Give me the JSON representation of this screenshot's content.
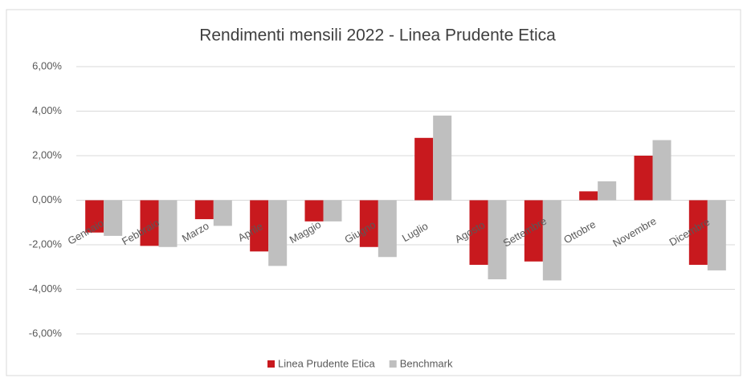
{
  "chart_data": {
    "type": "bar",
    "title": "Rendimenti mensili 2022 - Linea Prudente Etica",
    "categories": [
      "Gennaio",
      "Febbraio",
      "Marzo",
      "Aprile",
      "Maggio",
      "Giugno",
      "Luglio",
      "Agosto",
      "Settembre",
      "Ottobre",
      "Novembre",
      "Dicembre"
    ],
    "series": [
      {
        "name": "Linea Prudente Etica",
        "color": "#c8191e",
        "values": [
          -1.45,
          -2.05,
          -0.85,
          -2.3,
          -0.95,
          -2.1,
          2.8,
          -2.9,
          -2.75,
          0.4,
          2.0,
          -2.9
        ]
      },
      {
        "name": "Benchmark",
        "color": "#bfbfbf",
        "values": [
          -1.6,
          -2.1,
          -1.15,
          -2.95,
          -0.95,
          -2.55,
          3.8,
          -3.55,
          -3.6,
          0.85,
          2.7,
          -3.15
        ]
      }
    ],
    "ylim": [
      -6,
      6
    ],
    "yticks": [
      {
        "value": -6,
        "label": "-6,00%"
      },
      {
        "value": -4,
        "label": "-4,00%"
      },
      {
        "value": -2,
        "label": "-2,00%"
      },
      {
        "value": 0,
        "label": "0,00%"
      },
      {
        "value": 2,
        "label": "2,00%"
      },
      {
        "value": 4,
        "label": "4,00%"
      },
      {
        "value": 6,
        "label": "6,00%"
      }
    ],
    "grid": true,
    "legend": "bottom"
  }
}
